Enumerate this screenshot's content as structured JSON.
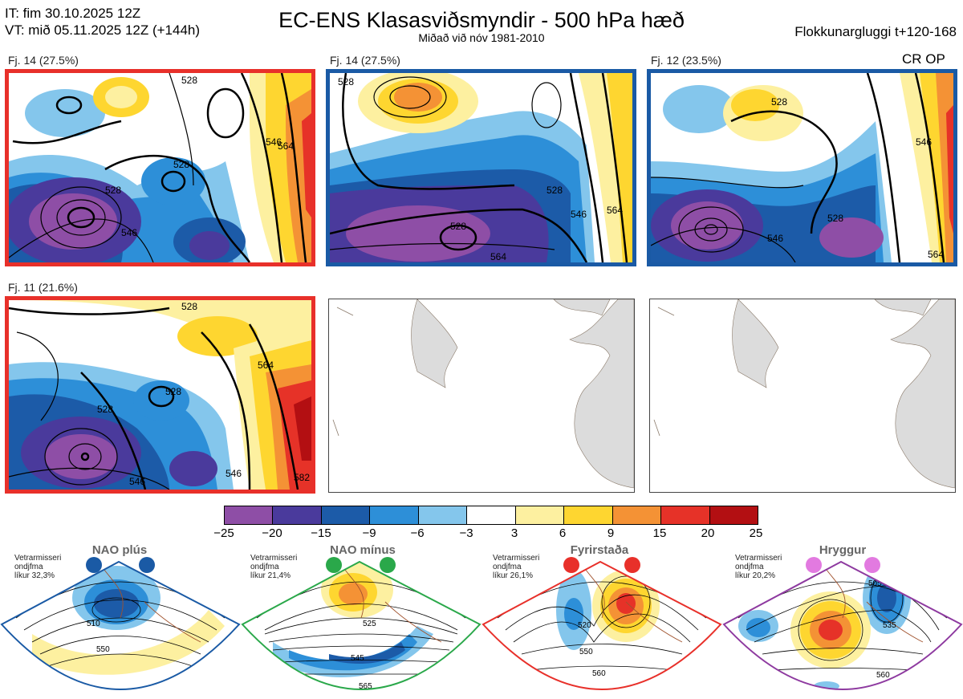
{
  "header": {
    "it_line": "IT: fim 30.10.2025 12Z",
    "vt_line": "VT: mið 05.11.2025 12Z  (+144h)",
    "title": "EC-ENS Klasasviðsmyndir - 500 hPa hæð",
    "subtitle": "Miðað við nóv 1981-2010",
    "window": "Flokkunargluggi t+120-168"
  },
  "panels": [
    {
      "label": "Fj. 14 (27.5%)",
      "frame_color": "#e8302a",
      "contours": [
        "528",
        "528",
        "528",
        "546",
        "564",
        "546"
      ]
    },
    {
      "label": "Fj. 14 (27.5%)",
      "frame_color": "#1a5aa5",
      "contours": [
        "528",
        "528",
        "528",
        "546",
        "564",
        "564"
      ]
    },
    {
      "label": "Fj. 12 (23.5%)",
      "frame_color": "#1a5aa5",
      "contours": [
        "528",
        "528",
        "546",
        "546",
        "564"
      ],
      "tag": "CR OP"
    },
    {
      "label": "Fj. 11 (21.6%)",
      "frame_color": "#e8302a",
      "contours": [
        "528",
        "528",
        "528",
        "546",
        "546",
        "564",
        "582"
      ]
    }
  ],
  "colorbar": {
    "colors": [
      "#8e4ea6",
      "#4a3a9c",
      "#1c5ba8",
      "#2d8fd8",
      "#84c6ec",
      "#ffffff",
      "#fdf0a0",
      "#fed630",
      "#f49235",
      "#e63228",
      "#b30f12"
    ],
    "ticks": [
      "−25",
      "−20",
      "−15",
      "−9",
      "−6",
      "−3",
      "3",
      "6",
      "9",
      "15",
      "20",
      "25"
    ]
  },
  "regimes": [
    {
      "title": "NAO plús",
      "note": [
        "Vetrarmisseri",
        "ondjfma",
        "líkur 32,3%"
      ],
      "color": "#1a5aa5",
      "contours": [
        "510",
        "550"
      ]
    },
    {
      "title": "NAO mínus",
      "note": [
        "Vetrarmisseri",
        "ondjfma",
        "líkur 21,4%"
      ],
      "color": "#2aa84a",
      "contours": [
        "525",
        "545",
        "565"
      ]
    },
    {
      "title": "Fyrirstaða",
      "note": [
        "Vetrarmisseri",
        "ondjfma",
        "líkur 26,1%"
      ],
      "color": "#e8302a",
      "contours": [
        "520",
        "550",
        "560"
      ]
    },
    {
      "title": "Hryggur",
      "note": [
        "Vetrarmisseri",
        "ondjfma",
        "líkur 20,2%"
      ],
      "color": "#8e3aa0",
      "contours": [
        "505",
        "535",
        "560"
      ]
    }
  ]
}
